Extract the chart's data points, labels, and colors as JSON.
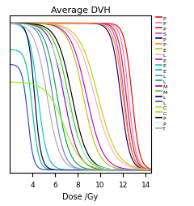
{
  "title": "Average DVH",
  "xlabel": "Dose /Gy",
  "xlim": [
    2.0,
    14.5
  ],
  "ylim": [
    -0.02,
    1.05
  ],
  "xticks": [
    4,
    6,
    8,
    10,
    12,
    14
  ],
  "series": [
    {
      "label": "P",
      "color": "#ff0000",
      "midpoint": 12.8,
      "steepness": 3.0,
      "ymax": 1.0
    },
    {
      "label": "P",
      "color": "#ff69b4",
      "midpoint": 12.5,
      "steepness": 3.0,
      "ymax": 1.0
    },
    {
      "label": "P",
      "color": "#cc2222",
      "midpoint": 12.3,
      "steepness": 2.8,
      "ymax": 1.0
    },
    {
      "label": "S",
      "color": "#cc44cc",
      "midpoint": 12.1,
      "steepness": 2.8,
      "ymax": 1.0
    },
    {
      "label": "P",
      "color": "#000099",
      "midpoint": 11.8,
      "steepness": 2.5,
      "ymax": 1.0
    },
    {
      "label": "P",
      "color": "#ff8800",
      "midpoint": 12.0,
      "steepness": 2.5,
      "ymax": 1.0
    },
    {
      "label": "E",
      "color": "#aacc00",
      "midpoint": 8.5,
      "steepness": 1.5,
      "ymax": 1.0
    },
    {
      "label": "L",
      "color": "#ffaacc",
      "midpoint": 9.5,
      "steepness": 1.2,
      "ymax": 1.0
    },
    {
      "label": "E",
      "color": "#cc00cc",
      "midpoint": 8.8,
      "steepness": 1.4,
      "ymax": 1.0
    },
    {
      "label": "E",
      "color": "#00cccc",
      "midpoint": 4.5,
      "steepness": 2.5,
      "ymax": 1.0
    },
    {
      "label": "E",
      "color": "#00cc88",
      "midpoint": 4.0,
      "steepness": 3.5,
      "ymax": 0.82
    },
    {
      "label": "L",
      "color": "#7777cc",
      "midpoint": 5.8,
      "steepness": 2.0,
      "ymax": 1.0
    },
    {
      "label": "L",
      "color": "#00aa44",
      "midpoint": 6.2,
      "steepness": 1.8,
      "ymax": 1.0
    },
    {
      "label": "M",
      "color": "#aa00aa",
      "midpoint": 6.8,
      "steepness": 1.6,
      "ymax": 1.0
    },
    {
      "label": "M",
      "color": "#44cc00",
      "midpoint": 7.2,
      "steepness": 1.5,
      "ymax": 1.0
    },
    {
      "label": "L",
      "color": "#000044",
      "midpoint": 4.2,
      "steepness": 3.5,
      "ymax": 1.0
    },
    {
      "label": "L",
      "color": "#4444cc",
      "midpoint": 3.6,
      "steepness": 4.0,
      "ymax": 0.72
    },
    {
      "label": "C",
      "color": "#88ff00",
      "midpoint": 6.8,
      "steepness": 1.3,
      "ymax": 0.6
    },
    {
      "label": "C",
      "color": "#cccc00",
      "midpoint": 9.8,
      "steepness": 1.2,
      "ymax": 1.0
    },
    {
      "label": "P",
      "color": "#000000",
      "midpoint": 7.5,
      "steepness": 1.5,
      "ymax": 1.0
    },
    {
      "label": "P",
      "color": "#aaffff",
      "midpoint": 7.0,
      "steepness": 1.3,
      "ymax": 1.0
    },
    {
      "label": "T",
      "color": "#aaaaaa",
      "midpoint": 5.3,
      "steepness": 1.8,
      "ymax": 1.0
    }
  ]
}
